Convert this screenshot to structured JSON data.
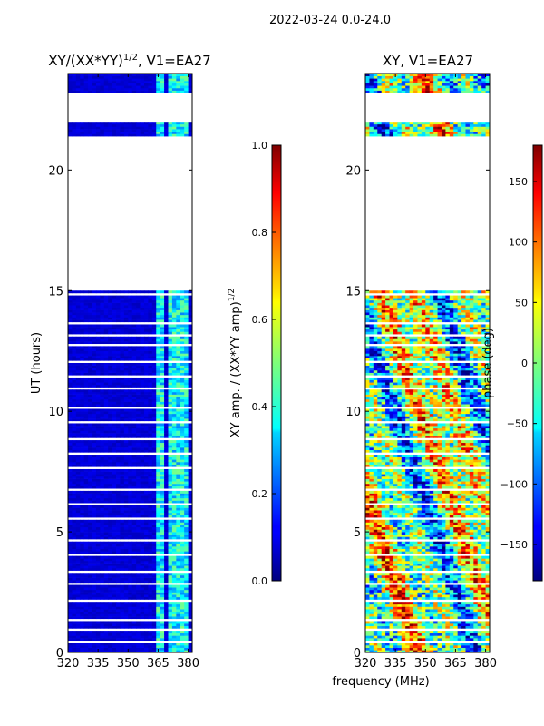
{
  "suptitle": "2022-03-24 0.0-24.0",
  "shared_xlabel": "frequency (MHz)",
  "chart_data": [
    {
      "type": "heatmap",
      "title_main": "XY/(XX*YY)",
      "title_exp": "1/2",
      "title_suffix": ", V1=EA27",
      "xlabel": "",
      "ylabel": "UT (hours)",
      "xlim": [
        320,
        382
      ],
      "ylim": [
        0,
        24
      ],
      "xticks": [
        "320",
        "335",
        "350",
        "365",
        "380"
      ],
      "yticks": [
        "0",
        "5",
        "10",
        "15",
        "20"
      ],
      "colorbar": {
        "label_main": "XY amp. / (XX*YY amp)",
        "label_exp": "1/2",
        "range": [
          0.0,
          1.0
        ],
        "ticks": [
          "0.0",
          "0.2",
          "0.4",
          "0.6",
          "0.8",
          "1.0"
        ]
      },
      "data_segments_hours": [
        [
          0.0,
          15.0
        ],
        [
          21.3,
          22.0
        ],
        [
          23.2,
          24.0
        ]
      ],
      "bright_band_mhz": [
        [
          364,
          368
        ],
        [
          370,
          375
        ],
        [
          376,
          380
        ]
      ]
    },
    {
      "type": "heatmap",
      "title_main": "XY, V1=EA27",
      "xlabel": "frequency (MHz)",
      "ylabel": "",
      "xlim": [
        320,
        382
      ],
      "ylim": [
        0,
        24
      ],
      "xticks": [
        "320",
        "335",
        "350",
        "365",
        "380"
      ],
      "yticks": [
        "0",
        "5",
        "10",
        "15",
        "20"
      ],
      "colorbar": {
        "label_main": "phase (deg)",
        "range": [
          -180,
          180
        ],
        "ticks": [
          "−150",
          "−100",
          "−50",
          "0",
          "50",
          "100",
          "150"
        ]
      },
      "data_segments_hours": [
        [
          0.0,
          15.0
        ],
        [
          21.3,
          22.0
        ],
        [
          23.2,
          24.0
        ]
      ]
    }
  ]
}
